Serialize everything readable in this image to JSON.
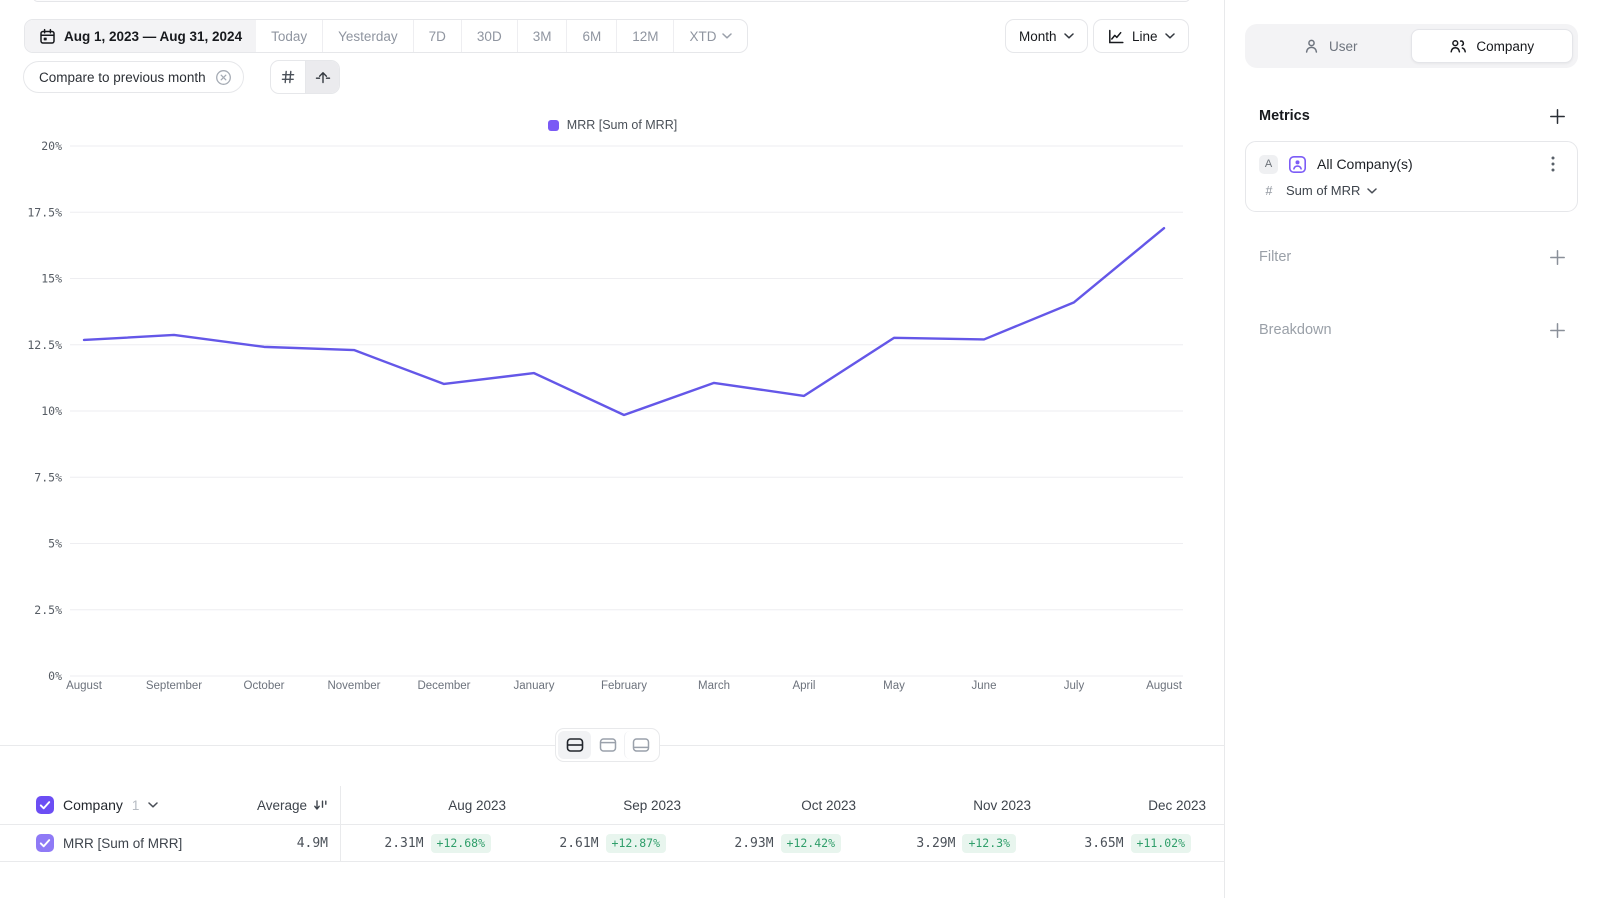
{
  "toolbar": {
    "date_range": "Aug 1, 2023 — Aug 31, 2024",
    "presets": [
      "Today",
      "Yesterday",
      "7D",
      "30D",
      "3M",
      "6M",
      "12M"
    ],
    "xtd": "XTD",
    "compare_label": "Compare to previous month",
    "granularity": "Month",
    "chart_type": "Line"
  },
  "sidebar": {
    "tabs": {
      "user": "User",
      "company": "Company"
    },
    "metrics_title": "Metrics",
    "metric": {
      "badge": "A",
      "name": "All Company(s)",
      "hash": "#",
      "aggregation": "Sum of MRR"
    },
    "filter_label": "Filter",
    "breakdown_label": "Breakdown"
  },
  "chart_data": {
    "type": "line",
    "title": "",
    "legend": "MRR [Sum of MRR]",
    "legend_position": "top-center",
    "grid": true,
    "x": [
      "August",
      "September",
      "October",
      "November",
      "December",
      "January",
      "February",
      "March",
      "April",
      "May",
      "June",
      "July",
      "August"
    ],
    "series": [
      {
        "name": "MRR [Sum of MRR]",
        "values": [
          12.68,
          12.87,
          12.42,
          12.3,
          11.02,
          11.43,
          9.85,
          11.06,
          10.57,
          12.76,
          12.7,
          14.1,
          16.9
        ]
      }
    ],
    "ylim": [
      0,
      20
    ],
    "ytick_step": 2.5,
    "ytick_suffix": "%"
  },
  "table": {
    "entity": "Company",
    "entity_count": "1",
    "average_label": "Average",
    "columns": [
      "Aug 2023",
      "Sep 2023",
      "Oct 2023",
      "Nov 2023",
      "Dec 2023"
    ],
    "rows": [
      {
        "label": "MRR [Sum of MRR]",
        "average": "4.9M",
        "cells": [
          {
            "value": "2.31M",
            "delta": "+12.68%"
          },
          {
            "value": "2.61M",
            "delta": "+12.87%"
          },
          {
            "value": "2.93M",
            "delta": "+12.42%"
          },
          {
            "value": "3.29M",
            "delta": "+12.3%"
          },
          {
            "value": "3.65M",
            "delta": "+11.02%"
          }
        ]
      }
    ]
  },
  "colors": {
    "line": "#6457e8",
    "legend_swatch": "#7a5af5",
    "checkbox_header": "#6c4ef4",
    "checkbox_row": "#8f7af6",
    "contact_icon": "#7c5cf6",
    "delta_text": "#2f9e6a",
    "delta_bg": "#e8f5ee",
    "grid_line": "#eeeef1",
    "border": "#e8e9eb"
  }
}
